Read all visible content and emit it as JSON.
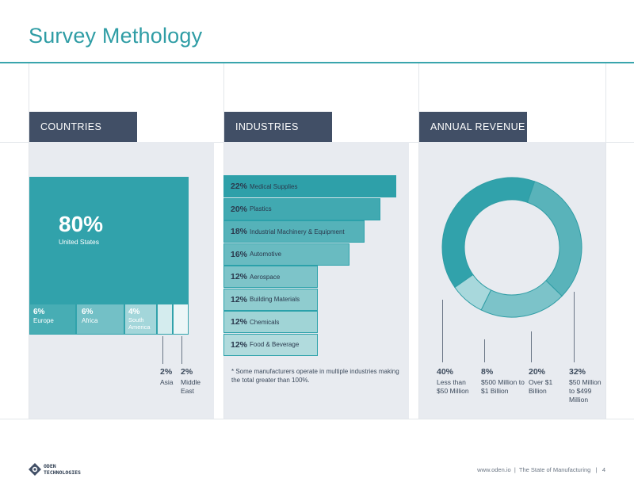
{
  "title": "Survey Methology",
  "countries": {
    "header": "COUNTRIES",
    "items": [
      {
        "pct": "80%",
        "label": "United States"
      },
      {
        "pct": "6%",
        "label": "Europe"
      },
      {
        "pct": "6%",
        "label": "Africa"
      },
      {
        "pct": "4%",
        "label": "South America"
      },
      {
        "pct": "2%",
        "label": "Asia"
      },
      {
        "pct": "2%",
        "label": "Middle East"
      }
    ]
  },
  "industries": {
    "header": "INDUSTRIES",
    "items": [
      {
        "pct": "22%",
        "label": "Medical Supplies",
        "value": 22
      },
      {
        "pct": "20%",
        "label": "Plastics",
        "value": 20
      },
      {
        "pct": "18%",
        "label": "Industrial Machinery & Equipment",
        "value": 18
      },
      {
        "pct": "16%",
        "label": "Automotive",
        "value": 16
      },
      {
        "pct": "12%",
        "label": "Aerospace",
        "value": 12
      },
      {
        "pct": "12%",
        "label": "Building Materials",
        "value": 12
      },
      {
        "pct": "12%",
        "label": "Chemicals",
        "value": 12
      },
      {
        "pct": "12%",
        "label": "Food & Beverage",
        "value": 12
      }
    ],
    "note": "* Some manufacturers operate in multiple industries making the total greater than 100%."
  },
  "revenue": {
    "header": "ANNUAL REVENUE",
    "items": [
      {
        "pct": "40%",
        "label": "Less than $50 Million",
        "value": 40,
        "color": "#31a2ab"
      },
      {
        "pct": "8%",
        "label": "$500 Million to $1 Billion",
        "value": 8,
        "color": "#a8d8dc"
      },
      {
        "pct": "20%",
        "label": "Over $1 Billion",
        "value": 20,
        "color": "#7cc3c9"
      },
      {
        "pct": "32%",
        "label": "$50 Million to $499 Million",
        "value": 32,
        "color": "#59b3ba"
      }
    ]
  },
  "footer": {
    "logo_line1": "ODEN",
    "logo_line2": "TECHNOLOGIES",
    "site": "www.oden.io",
    "sep": "|",
    "report": "The State of Manufacturing",
    "page": "4"
  },
  "colors": {
    "accent": "#2f9da5",
    "header_bg": "#414f66",
    "panel_bg": "#e8ebf0"
  }
}
